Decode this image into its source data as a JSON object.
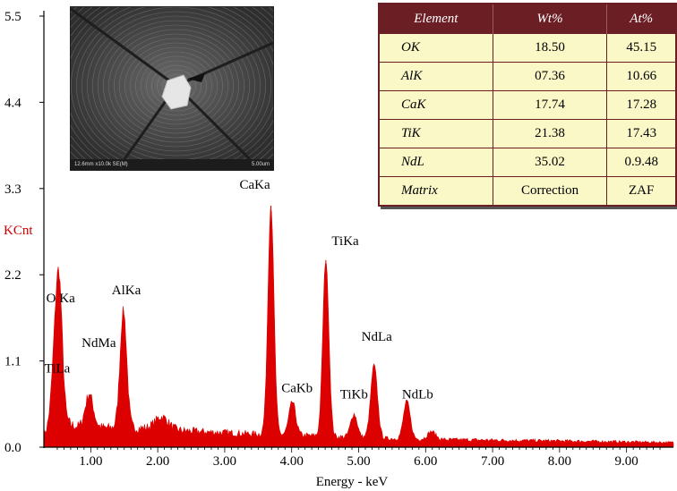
{
  "chart_data": {
    "type": "area",
    "xlabel": "Energy - keV",
    "ylabel": "KCnt",
    "xlim": [
      0.3,
      9.7
    ],
    "ylim": [
      0,
      5.5
    ],
    "x_ticks": [
      "1.00",
      "2.00",
      "3.00",
      "4.00",
      "5.00",
      "6.00",
      "7.00",
      "8.00",
      "9.00"
    ],
    "x_tick_values": [
      1,
      2,
      3,
      4,
      5,
      6,
      7,
      8,
      9
    ],
    "y_ticks": [
      "0.0",
      "1.1",
      "2.2",
      "3.3",
      "4.4",
      "5.5"
    ],
    "y_tick_values": [
      0,
      1.1,
      2.2,
      3.3,
      4.4,
      5.5
    ],
    "fill_color": "#dd0000",
    "baseline": [
      [
        0.3,
        0.15
      ],
      [
        0.45,
        0.3
      ],
      [
        0.6,
        0.32
      ],
      [
        0.8,
        0.26
      ],
      [
        1.2,
        0.25
      ],
      [
        1.8,
        0.24
      ],
      [
        2.6,
        0.2
      ],
      [
        3.4,
        0.17
      ],
      [
        4.2,
        0.15
      ],
      [
        5.0,
        0.12
      ],
      [
        6.0,
        0.1
      ],
      [
        7.0,
        0.09
      ],
      [
        8.0,
        0.08
      ],
      [
        9.7,
        0.06
      ]
    ],
    "peaks": [
      {
        "label": "O Ka",
        "x": 0.525,
        "height": 1.75,
        "width": 0.05
      },
      {
        "label": "TiLa",
        "x": 0.452,
        "height": 0.55,
        "width": 0.05
      },
      {
        "label": "NdMa",
        "x": 0.978,
        "height": 0.42,
        "width": 0.06
      },
      {
        "label": "AlKa",
        "x": 1.487,
        "height": 1.5,
        "width": 0.05
      },
      {
        "label": "",
        "x": 2.06,
        "height": 0.16,
        "width": 0.1
      },
      {
        "label": "CaKa",
        "x": 3.69,
        "height": 2.92,
        "width": 0.045
      },
      {
        "label": "CaKb",
        "x": 4.01,
        "height": 0.42,
        "width": 0.05
      },
      {
        "label": "TiKa",
        "x": 4.51,
        "height": 2.25,
        "width": 0.045
      },
      {
        "label": "TiKb",
        "x": 4.93,
        "height": 0.3,
        "width": 0.05
      },
      {
        "label": "NdLa",
        "x": 5.23,
        "height": 0.93,
        "width": 0.05
      },
      {
        "label": "NdLb",
        "x": 5.72,
        "height": 0.48,
        "width": 0.05
      },
      {
        "label": "",
        "x": 6.09,
        "height": 0.1,
        "width": 0.06
      }
    ],
    "annotations": [
      {
        "text": "O Ka",
        "x": 0.55,
        "y": 1.85
      },
      {
        "text": "TiLa",
        "x": 0.5,
        "y": 0.95
      },
      {
        "text": "NdMa",
        "x": 1.12,
        "y": 1.28
      },
      {
        "text": "AlKa",
        "x": 1.53,
        "y": 1.95
      },
      {
        "text": "CaKa",
        "x": 3.45,
        "y": 3.3
      },
      {
        "text": "CaKb",
        "x": 4.08,
        "y": 0.7
      },
      {
        "text": "TiKa",
        "x": 4.8,
        "y": 2.58
      },
      {
        "text": "TiKb",
        "x": 4.93,
        "y": 0.62
      },
      {
        "text": "NdLa",
        "x": 5.27,
        "y": 1.36
      },
      {
        "text": "NdLb",
        "x": 5.88,
        "y": 0.62
      }
    ]
  },
  "sem_image": {
    "caption_left": "12.6mm x10.0k SE(M)",
    "caption_right": "5.00um"
  },
  "table": {
    "headers": [
      "Element",
      "Wt%",
      "At%"
    ],
    "rows": [
      [
        "OK",
        "18.50",
        "45.15"
      ],
      [
        "AlK",
        "07.36",
        "10.66"
      ],
      [
        "CaK",
        "17.74",
        "17.28"
      ],
      [
        "TiK",
        "21.38",
        "17.43"
      ],
      [
        "NdL",
        "35.02",
        "0.9.48"
      ],
      [
        "Matrix",
        "Correction",
        "ZAF"
      ]
    ]
  }
}
